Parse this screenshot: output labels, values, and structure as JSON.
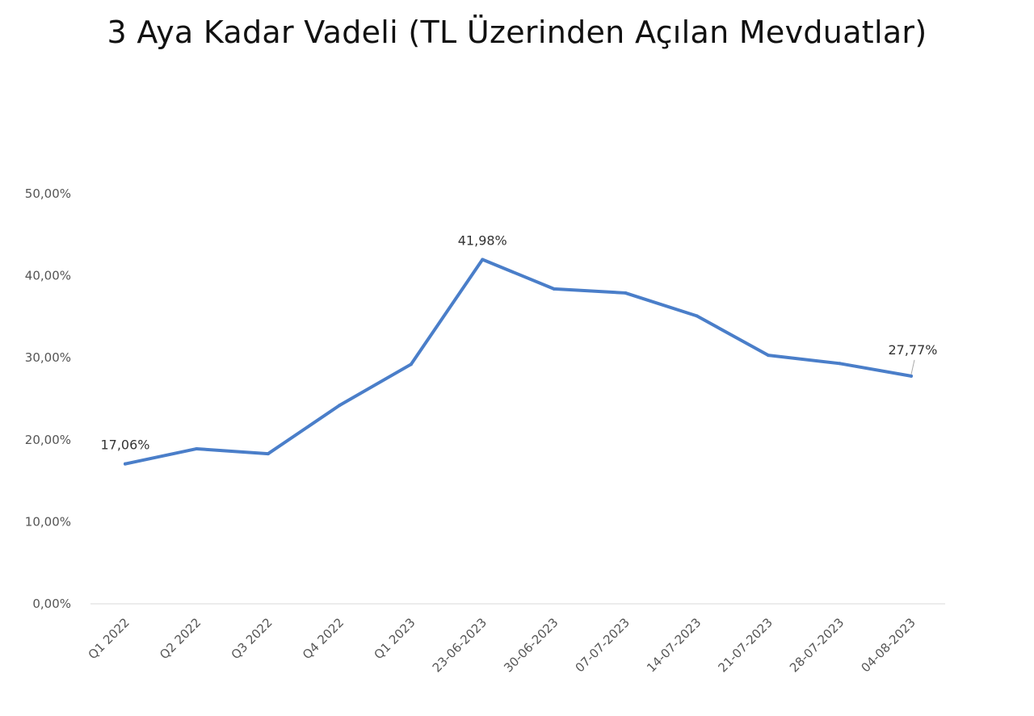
{
  "chart_data": {
    "type": "line",
    "title": "3 Aya Kadar Vadeli (TL Üzerinden Açılan Mevduatlar)",
    "xlabel": "",
    "ylabel": "",
    "categories": [
      "Q1 2022",
      "Q2 2022",
      "Q3 2022",
      "Q4 2022",
      "Q1 2023",
      "23-06-2023",
      "30-06-2023",
      "07-07-2023",
      "14-07-2023",
      "21-07-2023",
      "28-07-2023",
      "04-08-2023"
    ],
    "series": [
      {
        "values": [
          17.06,
          18.9,
          18.3,
          24.2,
          29.2,
          41.98,
          38.4,
          37.9,
          35.1,
          30.3,
          29.3,
          27.77
        ],
        "color": "#4a7ec9"
      }
    ],
    "ylim": [
      0,
      50
    ],
    "y_ticks": [
      0,
      10,
      20,
      30,
      40,
      50
    ],
    "y_tick_labels": [
      "0,00%",
      "10,00%",
      "20,00%",
      "30,00%",
      "40,00%",
      "50,00%"
    ],
    "data_labels": [
      {
        "index": 0,
        "text": "17,06%"
      },
      {
        "index": 5,
        "text": "41,98%"
      },
      {
        "index": 11,
        "text": "27,77%"
      }
    ],
    "grid": false,
    "legend": "none",
    "axis_color": "#d9d9d9"
  }
}
